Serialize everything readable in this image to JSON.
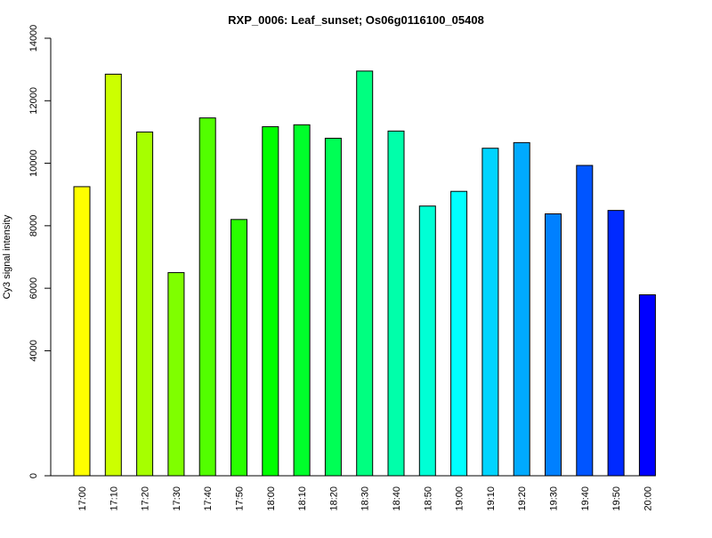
{
  "chart_data": {
    "type": "bar",
    "title": "RXP_0006: Leaf_sunset; Os06g0116100_05408",
    "xlabel": "",
    "ylabel": "Cy3 signal intensity",
    "ylim": [
      0,
      14000
    ],
    "y_ticks": [
      0,
      4000,
      6000,
      8000,
      10000,
      12000,
      14000
    ],
    "categories": [
      "17:00",
      "17:10",
      "17:20",
      "17:30",
      "17:40",
      "17:50",
      "18:00",
      "18:10",
      "18:20",
      "18:30",
      "18:40",
      "18:50",
      "19:00",
      "19:10",
      "19:20",
      "19:30",
      "19:40",
      "19:50",
      "20:00"
    ],
    "values": [
      9250,
      12850,
      11000,
      6500,
      11450,
      8200,
      11170,
      11230,
      10800,
      12950,
      11030,
      8630,
      9100,
      10480,
      10660,
      8380,
      9930,
      8490,
      5790
    ],
    "colors": [
      "#ffff00",
      "#ccff00",
      "#a6ff00",
      "#7fff00",
      "#52ff00",
      "#29ff00",
      "#00ff00",
      "#00ff2b",
      "#00ff55",
      "#00ff80",
      "#00ffaa",
      "#00ffd5",
      "#00ffff",
      "#00d4ff",
      "#00aaff",
      "#0080ff",
      "#0055ff",
      "#002aff",
      "#0000ff"
    ],
    "grid": false,
    "legend": "none"
  }
}
